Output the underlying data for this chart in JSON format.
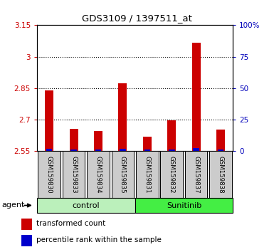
{
  "title": "GDS3109 / 1397511_at",
  "samples": [
    "GSM159830",
    "GSM159833",
    "GSM159834",
    "GSM159835",
    "GSM159831",
    "GSM159832",
    "GSM159837",
    "GSM159838"
  ],
  "red_values": [
    2.84,
    2.655,
    2.645,
    2.875,
    2.618,
    2.698,
    3.065,
    2.652
  ],
  "blue_values": [
    2.0,
    1.5,
    1.5,
    2.0,
    1.5,
    1.5,
    2.5,
    1.5
  ],
  "ylim_left": [
    2.55,
    3.15
  ],
  "ylim_right": [
    0,
    100
  ],
  "yticks_left": [
    2.55,
    2.7,
    2.85,
    3.0,
    3.15
  ],
  "ytick_labels_left": [
    "2.55",
    "2.7",
    "2.85",
    "3",
    "3.15"
  ],
  "yticks_right": [
    0,
    25,
    50,
    75,
    100
  ],
  "ytick_labels_right": [
    "0",
    "25",
    "50",
    "75",
    "100%"
  ],
  "grid_lines": [
    2.7,
    2.85,
    3.0
  ],
  "bar_bottom": 2.55,
  "blue_bar_scale": 0.6,
  "control_color": "#bbf0bb",
  "sunitinib_color": "#44ee44",
  "group_label_control": "control",
  "group_label_sunitinib": "Sunitinib",
  "agent_label": "agent",
  "legend_red": "transformed count",
  "legend_blue": "percentile rank within the sample",
  "red_color": "#cc0000",
  "blue_color": "#0000cc",
  "title_color": "#000000",
  "left_axis_color": "#cc0000",
  "right_axis_color": "#0000bb",
  "sample_box_color": "#cccccc",
  "background_color": "#ffffff"
}
